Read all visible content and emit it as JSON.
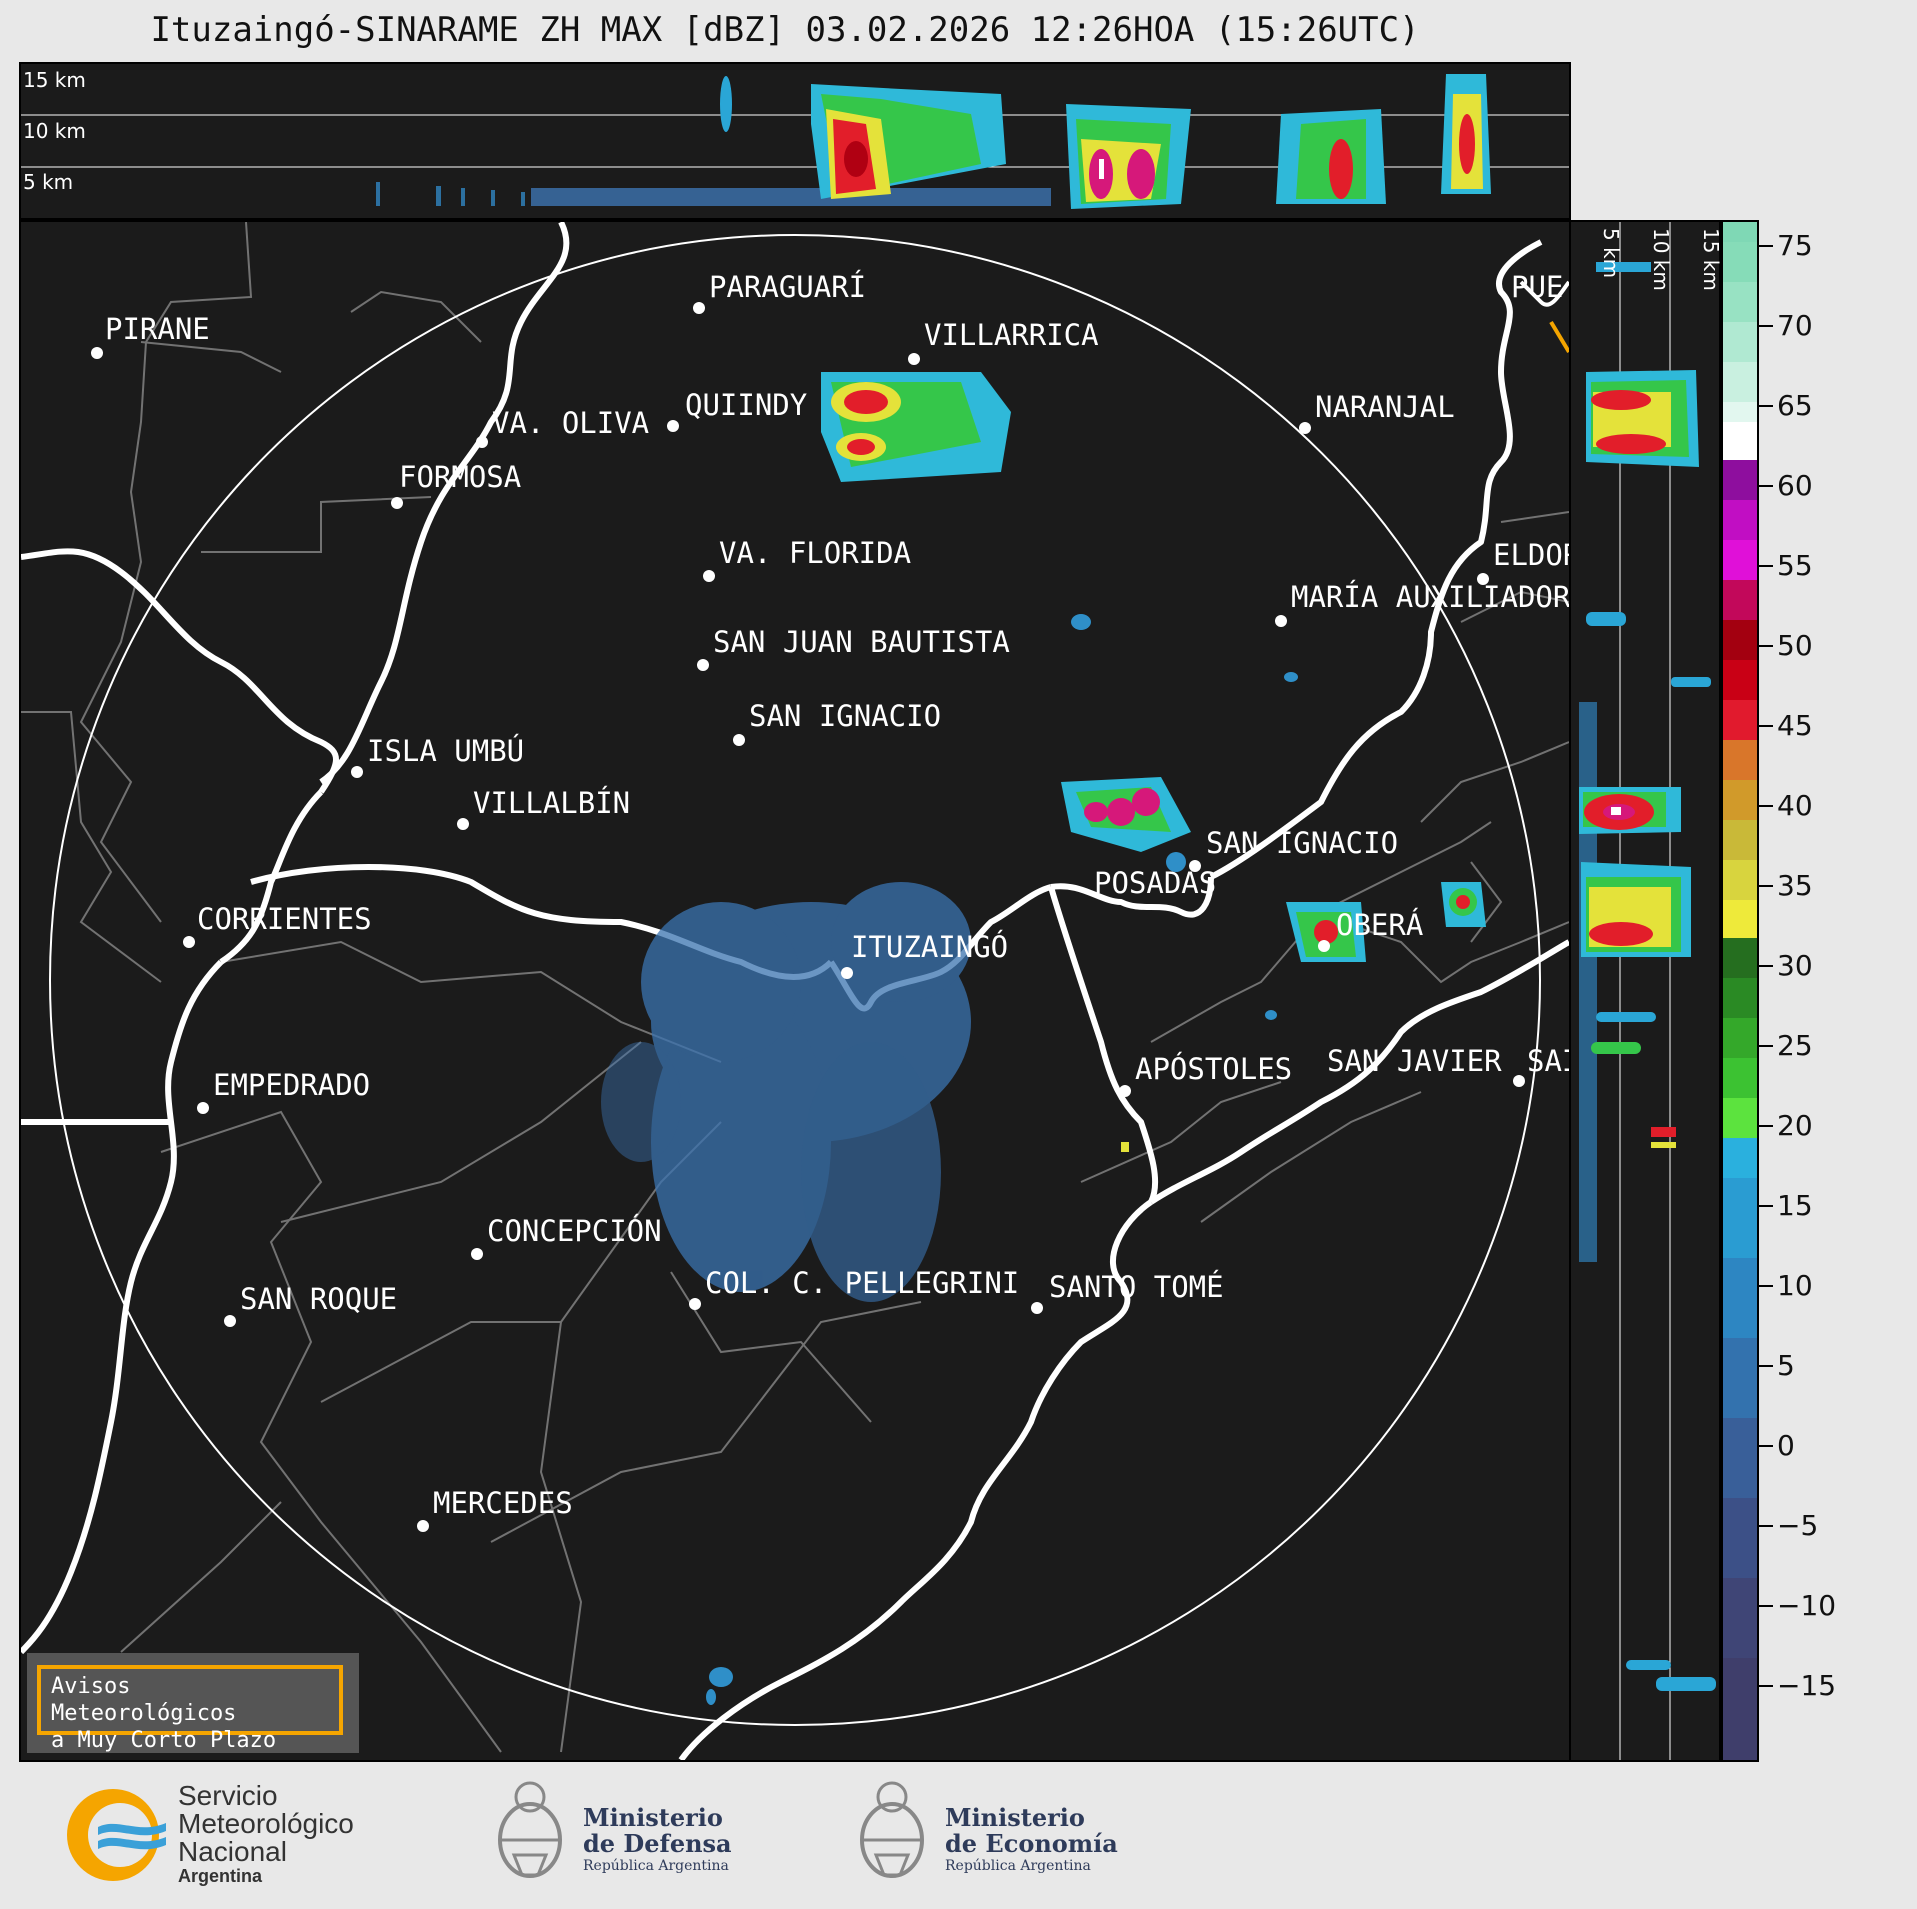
{
  "title": "Ituzaingó-SINARAME ZH MAX [dBZ] 03.02.2026 12:26HOA (15:26UTC)",
  "top_panel": {
    "altitude_labels": [
      "15 km",
      "10 km",
      "5 km"
    ]
  },
  "side_panel": {
    "altitude_labels": [
      "5 km",
      "10 km",
      "15 km"
    ]
  },
  "colorbar": {
    "ticks": [
      "75",
      "70",
      "65",
      "60",
      "55",
      "50",
      "45",
      "40",
      "35",
      "30",
      "25",
      "20",
      "15",
      "10",
      "5",
      "0",
      "−5",
      "−10",
      "−15"
    ]
  },
  "cities": {
    "pirane": "PIRANE",
    "paraguari": "PARAGUARÍ",
    "villarrica": "VILLARRICA",
    "va_oliva": "VA. OLIVA",
    "quiindy": "QUIINDY",
    "naranjal": "NARANJAL",
    "formosa": "FORMOSA",
    "va_florida": "VA. FLORIDA",
    "eldorado": "ELDOR",
    "maria_auxiliadora": "MARÍA AUXILIADOR",
    "san_juan_bautista": "SAN JUAN BAUTISTA",
    "san_ignacio_py": "SAN IGNACIO",
    "isla_umbu": "ISLA UMBÚ",
    "villalbin": "VILLALBÍN",
    "san_ignacio_ar": "SAN IGNACIO",
    "posadas": "POSADAS",
    "corrientes": "CORRIENTES",
    "itauzaingo": "ITUZAINGÓ",
    "obera": "OBERÁ",
    "apostoles": "APÓSTOLES",
    "san_javier": "SAN JAVIER",
    "san_cut": "SAI",
    "empedrado": "EMPEDRADO",
    "concepcion": "CONCEPCIÓN",
    "san_roque": "SAN ROQUE",
    "col_pellegrini": "COL. C. PELLEGRINI",
    "santo_tome": "SANTO TOMÉ",
    "mercedes": "MERCEDES",
    "puerto": "PUE"
  },
  "notice": {
    "line1": "Avisos Meteorológicos",
    "line2": "a Muy Corto Plazo"
  },
  "logos": {
    "smn": {
      "line1": "Servicio",
      "line2": "Meteorológico",
      "line3": "Nacional",
      "line4": "Argentina"
    },
    "defensa": {
      "line1": "Ministerio",
      "line2": "de Defensa",
      "line3": "República Argentina"
    },
    "economia": {
      "line1": "Ministerio",
      "line2": "de Economía",
      "line3": "República Argentina"
    }
  },
  "colors": {
    "background": "#1b1b1b",
    "notice_border": "#f5a500",
    "smn_orange": "#f5a500",
    "smn_blue": "#3aa0d8"
  }
}
